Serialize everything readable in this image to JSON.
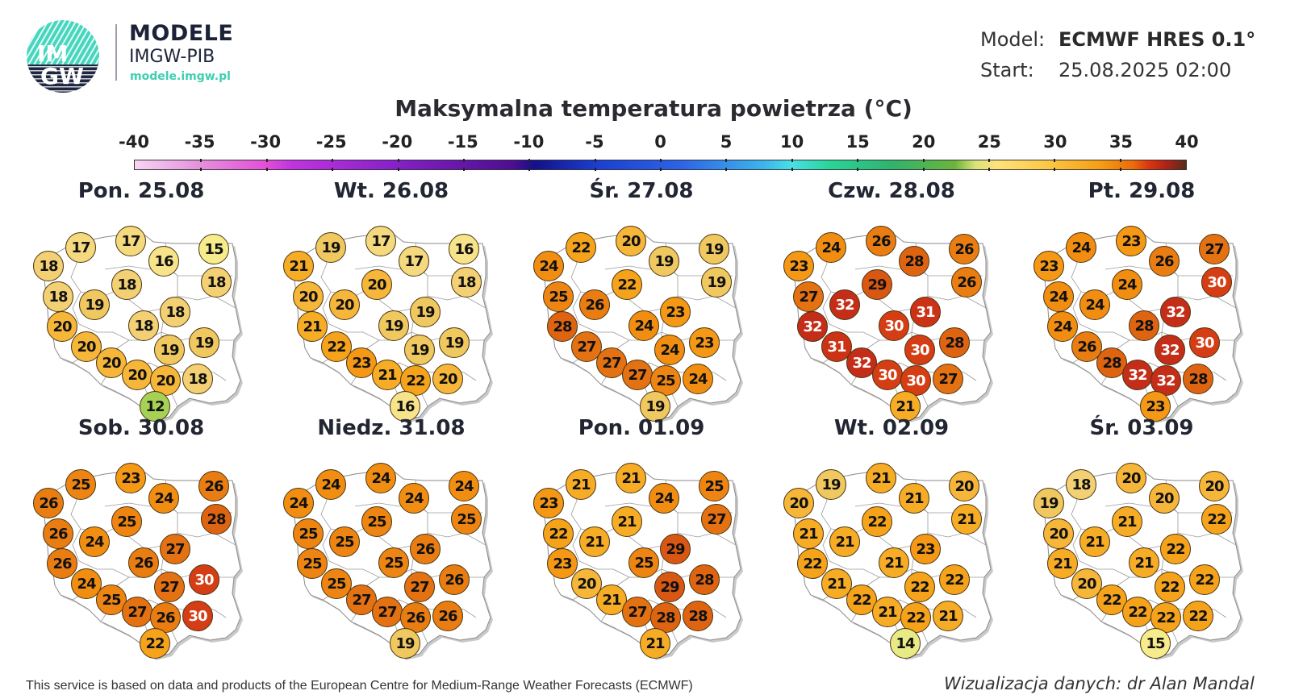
{
  "header": {
    "logo_text_top": "IM",
    "logo_text_bottom": "GW",
    "brand_title": "MODELE",
    "brand_subtitle": "IMGW-PIB",
    "brand_url": "modele.imgw.pl",
    "model_label": "Model:",
    "model_value": "ECMWF HRES 0.1°",
    "start_label": "Start:",
    "start_value": "25.08.2025 02:00"
  },
  "title": "Maksymalna temperatura powietrza (°C)",
  "colorbar": {
    "ticks": [
      "-40",
      "-35",
      "-30",
      "-25",
      "-20",
      "-15",
      "-10",
      "-5",
      "0",
      "5",
      "10",
      "15",
      "20",
      "25",
      "30",
      "35",
      "40"
    ],
    "range": [
      -40,
      40
    ],
    "colors": {
      "min": "#f9d4f4",
      "zero": "#49e0e4",
      "max": "#5a2a1c"
    }
  },
  "panels": [
    {
      "day": "Pon. 25.08",
      "values": [
        17,
        17,
        15,
        18,
        16,
        18,
        18,
        18,
        19,
        18,
        20,
        18,
        19,
        19,
        20,
        20,
        20,
        20,
        18,
        12
      ]
    },
    {
      "day": "Wt. 26.08",
      "values": [
        19,
        17,
        16,
        21,
        17,
        18,
        20,
        20,
        20,
        19,
        21,
        19,
        19,
        19,
        22,
        23,
        21,
        22,
        20,
        16
      ]
    },
    {
      "day": "Śr. 27.08",
      "values": [
        22,
        20,
        19,
        24,
        19,
        19,
        25,
        22,
        26,
        23,
        28,
        24,
        24,
        23,
        27,
        27,
        27,
        25,
        24,
        19
      ]
    },
    {
      "day": "Czw. 28.08",
      "values": [
        24,
        26,
        26,
        23,
        28,
        26,
        27,
        29,
        32,
        31,
        32,
        30,
        30,
        28,
        31,
        32,
        30,
        30,
        27,
        21
      ]
    },
    {
      "day": "Pt. 29.08",
      "values": [
        24,
        23,
        27,
        23,
        26,
        30,
        24,
        24,
        24,
        32,
        24,
        28,
        32,
        30,
        26,
        28,
        32,
        32,
        28,
        23
      ]
    },
    {
      "day": "Sob. 30.08",
      "values": [
        25,
        23,
        26,
        26,
        24,
        28,
        26,
        25,
        24,
        27,
        26,
        26,
        27,
        30,
        24,
        25,
        27,
        26,
        30,
        22
      ]
    },
    {
      "day": "Niedz. 31.08",
      "values": [
        24,
        24,
        24,
        24,
        24,
        25,
        25,
        25,
        25,
        26,
        25,
        25,
        27,
        26,
        25,
        27,
        27,
        26,
        26,
        19
      ]
    },
    {
      "day": "Pon. 01.09",
      "values": [
        21,
        21,
        25,
        23,
        24,
        27,
        22,
        21,
        21,
        29,
        23,
        25,
        29,
        28,
        20,
        21,
        27,
        28,
        28,
        21
      ]
    },
    {
      "day": "Wt. 02.09",
      "values": [
        19,
        21,
        20,
        20,
        21,
        21,
        21,
        22,
        21,
        23,
        22,
        21,
        22,
        22,
        21,
        22,
        21,
        22,
        21,
        14
      ]
    },
    {
      "day": "Śr. 03.09",
      "values": [
        18,
        20,
        20,
        19,
        20,
        22,
        20,
        21,
        21,
        22,
        21,
        21,
        22,
        22,
        20,
        22,
        22,
        22,
        22,
        15
      ]
    }
  ],
  "footer": {
    "credit_left": "This service is based on data and products of the European Centre for Medium-Range Weather Forecasts (ECMWF)",
    "credit_right": "Wizualizacja danych: dr Alan Mandal"
  }
}
